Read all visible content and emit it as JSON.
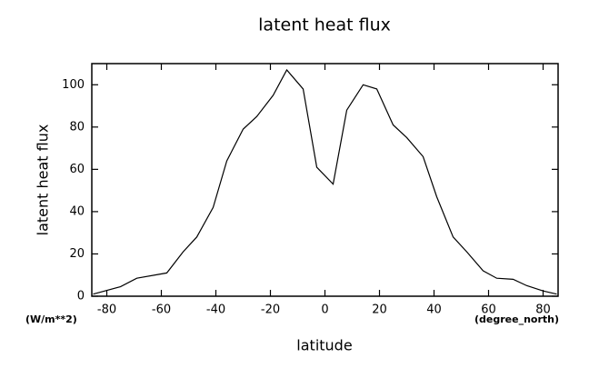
{
  "chart_data": {
    "type": "line",
    "title": "latent heat flux",
    "ylabel": "latent heat flux",
    "xlabel": "latitude",
    "yunits": "(W/m**2)",
    "xunits": "(degree_north)",
    "x": [
      -85,
      -75,
      -69,
      -58,
      -52,
      -47,
      -41,
      -36,
      -30,
      -25,
      -19,
      -14,
      -8,
      -3,
      3,
      8,
      14,
      19,
      25,
      30,
      36,
      41,
      47,
      52,
      58,
      63,
      69,
      74,
      80,
      85
    ],
    "series": [
      {
        "color": "#000000",
        "values": [
          1,
          4.5,
          8.5,
          11,
          21,
          28,
          42,
          64,
          79,
          85,
          95,
          107,
          98,
          61,
          53,
          88,
          100,
          98,
          81,
          75,
          66,
          47,
          28,
          21,
          12,
          8.5,
          8,
          5,
          2.5,
          1
        ]
      }
    ],
    "xlim": [
      -85.5,
      85.5
    ],
    "ylim": [
      0,
      110
    ],
    "xticks": [
      -80,
      -60,
      -40,
      -20,
      0,
      20,
      40,
      60,
      80
    ],
    "yticks": [
      0,
      20,
      40,
      60,
      80,
      100
    ]
  }
}
